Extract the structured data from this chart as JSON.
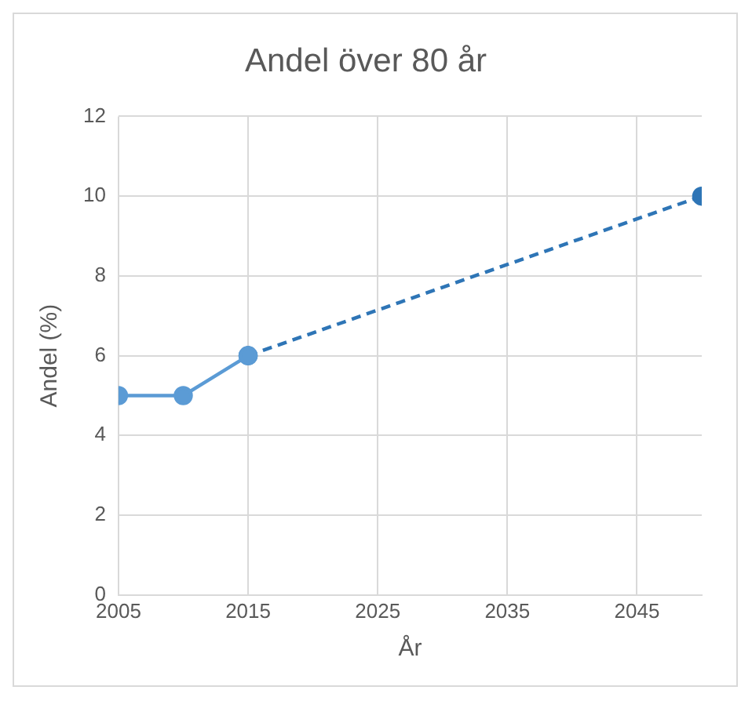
{
  "chart_data": {
    "type": "line",
    "title": "Andel över 80 år",
    "xlabel": "År",
    "ylabel": "Andel (%)",
    "xlim": [
      2005,
      2050
    ],
    "xticks": [
      2005,
      2015,
      2025,
      2035,
      2045
    ],
    "ylim": [
      0,
      12
    ],
    "yticks": [
      0,
      2,
      4,
      6,
      8,
      10,
      12
    ],
    "grid": true,
    "marker": "circle",
    "series": [
      {
        "x": [
          2005,
          2010,
          2015
        ],
        "values": [
          5,
          5,
          6
        ],
        "color": "#5b9bd5",
        "line_style": "solid"
      },
      {
        "x": [
          2015,
          2050
        ],
        "values": [
          6,
          10
        ],
        "color": "#2e75b6",
        "line_style": "dashed"
      }
    ]
  }
}
